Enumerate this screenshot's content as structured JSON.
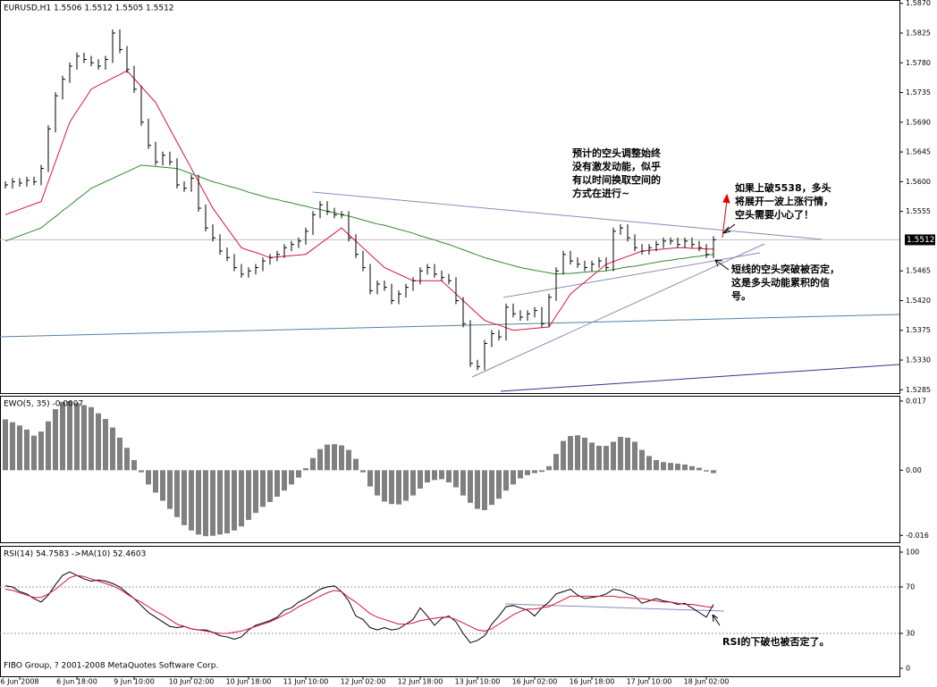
{
  "chart_data": [
    {
      "type": "price",
      "title": "EURUSD,H1  1.5506 1.5512 1.5505 1.5512",
      "color": "#000000",
      "ylim": [
        1.528,
        1.5875
      ],
      "yticks": [
        {
          "value": 1.587,
          "label": "1.5870"
        },
        1.5825,
        {
          "value": 1.578,
          "label": "1.5780"
        },
        1.5735,
        {
          "value": 1.569,
          "label": "1.5690"
        },
        1.5645,
        {
          "value": 1.56,
          "label": "1.5600"
        },
        1.5555,
        1.5465,
        {
          "value": 1.542,
          "label": "1.5420"
        },
        1.5375,
        {
          "value": 1.533,
          "label": "1.5330"
        },
        1.5285
      ],
      "last_price": 1.5512,
      "values": [
        1.5595,
        1.56,
        1.5598,
        1.5602,
        1.56,
        1.562,
        1.568,
        1.573,
        1.5755,
        1.5775,
        1.579,
        1.5785,
        1.578,
        1.5775,
        1.5785,
        1.5825,
        1.58,
        1.577,
        1.574,
        1.569,
        1.5655,
        1.563,
        1.564,
        1.563,
        1.5595,
        1.559,
        1.5605,
        1.556,
        1.553,
        1.5515,
        1.5495,
        1.5485,
        1.547,
        1.546,
        1.5465,
        1.547,
        1.548,
        1.5485,
        1.549,
        1.55,
        1.5505,
        1.551,
        1.5525,
        1.555,
        1.5565,
        1.5555,
        1.555,
        1.555,
        1.5515,
        1.549,
        1.547,
        1.5435,
        1.5445,
        1.544,
        1.542,
        1.543,
        1.544,
        1.545,
        1.5465,
        1.547,
        1.546,
        1.5455,
        1.545,
        1.542,
        1.5385,
        1.5325,
        1.532,
        1.5355,
        1.537,
        1.5365,
        1.541,
        1.54,
        1.5395,
        1.54,
        1.5405,
        1.5385,
        1.5425,
        1.5465,
        1.549,
        1.548,
        1.5475,
        1.547,
        1.5475,
        1.548,
        1.547,
        1.5525,
        1.553,
        1.5515,
        1.55,
        1.5495,
        1.55,
        1.5505,
        1.551,
        1.551,
        1.5505,
        1.551,
        1.5505,
        1.55,
        1.549,
        1.5512
      ],
      "series": [
        {
          "color": "#d8143c",
          "values": [
            1.555,
            1.5554,
            1.5558,
            1.5562,
            1.5566,
            1.557,
            1.56,
            1.563,
            1.566,
            1.569,
            1.5707,
            1.5723,
            1.574,
            1.5746,
            1.5751,
            1.5757,
            1.5762,
            1.5768,
            1.5756,
            1.5744,
            1.5732,
            1.572,
            1.57,
            1.568,
            1.566,
            1.564,
            1.562,
            1.56,
            1.558,
            1.556,
            1.5545,
            1.553,
            1.5515,
            1.55,
            1.5496,
            1.5493,
            1.5489,
            1.5485,
            1.5486,
            1.5487,
            1.5488,
            1.5489,
            1.549,
            1.5498,
            1.5506,
            1.5514,
            1.5522,
            1.553,
            1.552,
            1.551,
            1.55,
            1.549,
            1.548,
            1.547,
            1.5465,
            1.546,
            1.5455,
            1.545,
            1.545,
            1.545,
            1.545,
            1.545,
            1.544,
            1.543,
            1.542,
            1.541,
            1.54,
            1.539,
            1.5386,
            1.5383,
            1.5379,
            1.5375,
            1.5376,
            1.5377,
            1.5378,
            1.5379,
            1.538,
            1.5397,
            1.5413,
            1.543,
            1.5439,
            1.5448,
            1.5457,
            1.5466,
            1.5475,
            1.5479,
            1.5483,
            1.5487,
            1.5491,
            1.5495,
            1.5496,
            1.5497,
            1.5498,
            1.5499,
            1.55,
            1.55,
            1.5499,
            1.5499,
            1.5498,
            1.5498
          ]
        },
        {
          "color": "#2e8b2e",
          "values": [
            1.551,
            1.5514,
            1.5518,
            1.5522,
            1.5526,
            1.553,
            1.5539,
            1.5547,
            1.5556,
            1.5564,
            1.5573,
            1.5581,
            1.559,
            1.5595,
            1.56,
            1.5605,
            1.561,
            1.5615,
            1.562,
            1.5625,
            1.5624,
            1.5623,
            1.5622,
            1.5621,
            1.562,
            1.5616,
            1.5612,
            1.5608,
            1.5604,
            1.56,
            1.5597,
            1.5594,
            1.5591,
            1.5588,
            1.5584,
            1.5581,
            1.5578,
            1.5575,
            1.5573,
            1.557,
            1.5568,
            1.5565,
            1.5563,
            1.556,
            1.5558,
            1.5555,
            1.5553,
            1.555,
            1.5548,
            1.5545,
            1.5542,
            1.5539,
            1.5536,
            1.5534,
            1.5531,
            1.5528,
            1.5525,
            1.5522,
            1.5518,
            1.5515,
            1.5512,
            1.5508,
            1.5505,
            1.5501,
            1.5497,
            1.5493,
            1.5489,
            1.5485,
            1.5482,
            1.5479,
            1.5476,
            1.5473,
            1.547,
            1.5468,
            1.5466,
            1.5464,
            1.5462,
            1.546,
            1.5461,
            1.5461,
            1.5462,
            1.5463,
            1.5464,
            1.5464,
            1.5465,
            1.5467,
            1.5469,
            1.5471,
            1.5472,
            1.5474,
            1.5476,
            1.5478,
            1.548,
            1.5481,
            1.5483,
            1.5484,
            1.5486,
            1.5487,
            1.5489,
            1.549
          ]
        }
      ],
      "annotations": [
        [
          "预计的空头调整始终",
          "没有激发动能，似乎",
          "有以时间换取空间的",
          "方式在进行~"
        ],
        [
          "如果上破5538，多头",
          "将展开一波上涨行情，",
          "空头需要小心了！"
        ],
        [
          "短线的空头突破被否定，",
          "这是多头动能累积的信",
          "号。"
        ]
      ]
    },
    {
      "type": "bar",
      "title": "EWO(5, 35) -0.0007",
      "color": "#808080",
      "ylim": [
        -0.0177,
        0.0183
      ],
      "yticks": [
        0.017,
        {
          "value": 0,
          "label": "0.00"
        },
        -0.016
      ],
      "values": [
        0.0125,
        0.0118,
        0.011,
        0.01,
        0.0085,
        0.0095,
        0.012,
        0.015,
        0.0168,
        0.017,
        0.0165,
        0.016,
        0.0155,
        0.014,
        0.0126,
        0.0105,
        0.008,
        0.0055,
        0.0025,
        -0.0005,
        -0.0035,
        -0.0055,
        -0.0075,
        -0.0095,
        -0.0115,
        -0.0135,
        -0.0148,
        -0.0158,
        -0.0162,
        -0.0161,
        -0.0158,
        -0.0155,
        -0.0148,
        -0.0138,
        -0.0122,
        -0.0105,
        -0.009,
        -0.0078,
        -0.0065,
        -0.005,
        -0.0035,
        -0.0018,
        0.0005,
        0.003,
        0.0052,
        0.0063,
        0.0064,
        0.0061,
        0.005,
        0.0028,
        -0.0005,
        -0.004,
        -0.0062,
        -0.0077,
        -0.0083,
        -0.0084,
        -0.0075,
        -0.0062,
        -0.0045,
        -0.003,
        -0.0024,
        -0.0022,
        -0.003,
        -0.0042,
        -0.0062,
        -0.008,
        -0.0095,
        -0.0098,
        -0.0085,
        -0.007,
        -0.005,
        -0.0035,
        -0.002,
        -0.0012,
        -0.0007,
        -0.0004,
        0.001,
        0.004,
        0.0072,
        0.0084,
        0.0086,
        0.008,
        0.0068,
        0.006,
        0.006,
        0.007,
        0.0082,
        0.008,
        0.007,
        0.005,
        0.0035,
        0.0025,
        0.002,
        0.0018,
        0.0016,
        0.0014,
        0.001,
        0.0006,
        -0.0003,
        -0.0007
      ]
    },
    {
      "type": "line",
      "title": "RSI(14) 54.7583  ->MA(10) 52.4603",
      "copyright": "FIBO Group, ? 2001-2008 MetaQuotes Software Corp.",
      "ylim": [
        -6.9,
        105.4
      ],
      "yticks": [
        100,
        70,
        30,
        0
      ],
      "levels": [
        70,
        30
      ],
      "categories": [
        null,
        null,
        "6 Jun 2008",
        null,
        null,
        null,
        null,
        null,
        null,
        null,
        "6 Jun 18:00",
        null,
        null,
        null,
        null,
        null,
        null,
        null,
        "9 Jun 10:00",
        null,
        null,
        null,
        null,
        null,
        null,
        null,
        "10 Jun 02:00",
        null,
        null,
        null,
        null,
        null,
        null,
        null,
        "10 Jun 18:00",
        null,
        null,
        null,
        null,
        null,
        null,
        null,
        "11 Jun 10:00",
        null,
        null,
        null,
        null,
        null,
        null,
        null,
        "12 Jun 02:00",
        null,
        null,
        null,
        null,
        null,
        null,
        null,
        "12 Jun 18:00",
        null,
        null,
        null,
        null,
        null,
        null,
        null,
        "13 Jun 10:00",
        null,
        null,
        null,
        null,
        null,
        null,
        null,
        "16 Jun 02:00",
        null,
        null,
        null,
        null,
        null,
        null,
        null,
        "16 Jun 18:00",
        null,
        null,
        null,
        null,
        null,
        null,
        null,
        "17 Jun 10:00",
        null,
        null,
        null,
        null,
        null,
        null,
        null,
        "18 Jun 02:00",
        null
      ],
      "series": [
        {
          "color": "#000000",
          "values": [
            71,
            70,
            66,
            64,
            60,
            57,
            63,
            72,
            80,
            83,
            80,
            77,
            75,
            76,
            75,
            73,
            70,
            65,
            60,
            54,
            48,
            44,
            40,
            36,
            35,
            36,
            34,
            33,
            33,
            31,
            28,
            27,
            25,
            27,
            33,
            37,
            39,
            41,
            44,
            50,
            52,
            57,
            60,
            64,
            68,
            70,
            71,
            66,
            58,
            45,
            42,
            35,
            33,
            35,
            33,
            34,
            38,
            42,
            52,
            45,
            37,
            43,
            45,
            40,
            30,
            22,
            24,
            28,
            38,
            45,
            53,
            54,
            52,
            50,
            45,
            52,
            57,
            64,
            66,
            68,
            63,
            60,
            61,
            62,
            64,
            68,
            67,
            64,
            62,
            56,
            58,
            60,
            58,
            57,
            55,
            56,
            52,
            48,
            44,
            55
          ]
        },
        {
          "color": "#d8143c",
          "values": [
            68,
            67,
            65,
            63,
            61,
            61,
            64,
            68,
            73,
            78,
            80,
            79,
            77,
            75,
            73,
            71,
            68,
            64,
            60,
            57,
            53,
            49,
            46,
            42,
            38,
            36,
            34,
            33,
            32,
            31,
            30,
            30,
            31,
            32,
            34,
            36,
            38,
            40,
            43,
            46,
            49,
            53,
            56,
            59,
            62,
            65,
            67,
            66,
            61,
            57,
            52,
            47,
            44,
            42,
            40,
            38,
            38,
            39,
            41,
            42,
            43,
            44,
            44,
            42,
            39,
            36,
            33,
            32,
            34,
            38,
            42,
            46,
            49,
            51,
            51,
            52,
            53,
            56,
            59,
            62,
            62,
            62,
            62,
            62,
            62,
            62,
            61,
            61,
            60,
            60,
            59,
            58,
            57,
            57,
            56,
            55,
            55,
            54,
            53,
            52.5
          ]
        }
      ],
      "annotations": [
        [
          "RSI的下破也被否定了。"
        ]
      ]
    }
  ]
}
